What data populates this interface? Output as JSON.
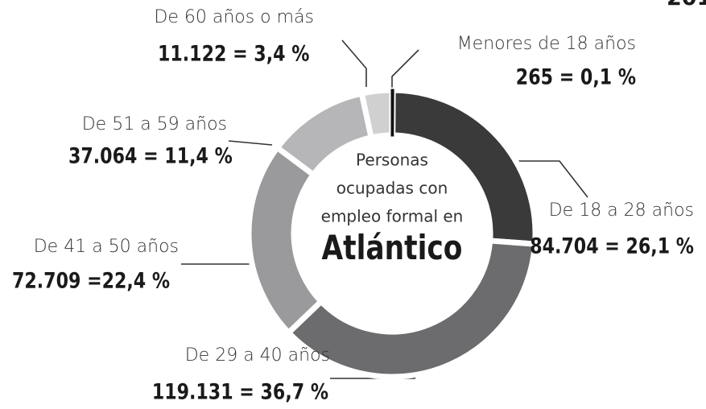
{
  "chart_data": {
    "type": "donut",
    "center_text": [
      "Personas",
      "ocupadas con",
      "empleo formal en"
    ],
    "center_title": "Atlántico",
    "annotation": "201",
    "categories": [
      "Menores de 18 años",
      "De 18 a 28 años",
      "De 29 a 40 años",
      "De 41 a 50 años",
      "De 51 a 59 años",
      "De 60 años o más"
    ],
    "values": [
      0.1,
      26.1,
      36.7,
      22.4,
      11.4,
      3.4
    ],
    "value_labels": [
      "265  = 0,1 %",
      "84.704  = 26,1 %",
      "119.131 = 36,7 %",
      "72.709 =22,4 %",
      "37.064 = 11,4 %",
      "11.122  = 3,4 %"
    ],
    "colors": [
      "#111111",
      "#3a3a3b",
      "#6c6c6e",
      "#9a9a9c",
      "#b6b6b8",
      "#d0d0d1"
    ]
  }
}
